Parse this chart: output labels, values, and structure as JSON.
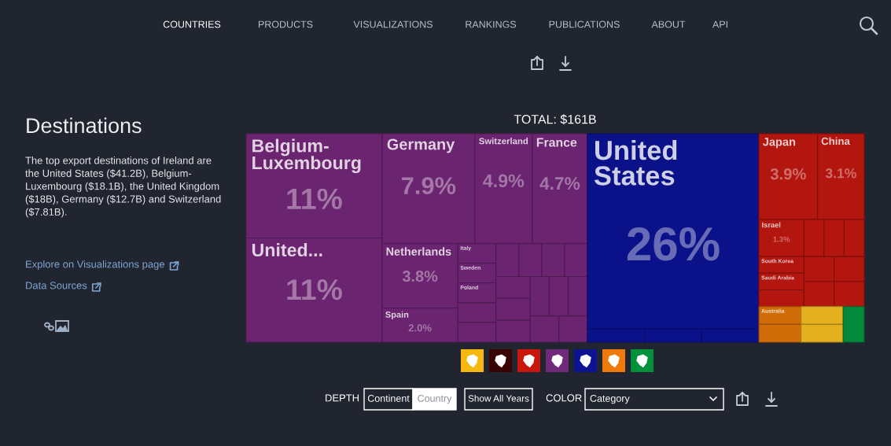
{
  "chart_data": {
    "type": "other",
    "title": "TOTAL: $161B",
    "categories": [
      "Belgium-Luxembourg",
      "United...",
      "Germany",
      "Switzerland",
      "France",
      "Netherlands",
      "Spain",
      "Italy",
      "Sweden",
      "Poland",
      null,
      null,
      null,
      null,
      null,
      null,
      null,
      null,
      null,
      null,
      null,
      null,
      null,
      null,
      "United States",
      null,
      null,
      null,
      "Japan",
      "China",
      "Israel",
      "South Korea",
      "Saudi Arabia",
      null,
      null,
      null,
      null,
      null,
      null,
      null,
      null,
      "Australia",
      null,
      null,
      null,
      null
    ],
    "values": [
      11,
      11,
      7.9,
      4.9,
      4.7,
      3.8,
      2.0,
      null,
      null,
      null,
      null,
      null,
      null,
      null,
      null,
      null,
      null,
      null,
      null,
      null,
      null,
      null,
      null,
      null,
      26,
      null,
      null,
      null,
      3.9,
      3.1,
      1.3,
      null,
      null,
      null,
      null,
      null,
      null,
      null,
      null,
      null,
      null,
      null,
      null,
      null,
      null,
      null
    ],
    "value_labels": [
      "11%",
      "11%",
      "7.9%",
      "4.9%",
      "4.7%",
      "3.8%",
      "2.0%",
      null,
      null,
      null,
      null,
      null,
      null,
      null,
      null,
      null,
      null,
      null,
      null,
      null,
      null,
      null,
      null,
      null,
      "26%",
      null,
      null,
      null,
      "3.9%",
      "3.1%",
      "1.3%",
      null,
      null,
      null,
      null,
      null,
      null,
      null,
      null,
      null,
      null,
      null,
      null,
      null,
      null,
      null
    ],
    "colors": [
      "#6a2470",
      "#6a2470",
      "#6a2470",
      "#6a2470",
      "#6a2470",
      "#6a2470",
      "#6a2470",
      "#6a2470",
      "#6a2470",
      "#6a2470",
      "#6a2470",
      "#6a2470",
      "#6a2470",
      "#6a2470",
      "#6a2470",
      "#6a2470",
      "#6a2470",
      "#6a2470",
      "#6a2470",
      "#6a2470",
      "#6a2470",
      "#6a2470",
      "#6a2470",
      "#6a2470",
      "#0b1289",
      "#0b1289",
      "#0b1289",
      "#0b1289",
      "#b3150f",
      "#b3150f",
      "#b3150f",
      "#b3150f",
      "#b3150f",
      "#b3150f",
      "#b3150f",
      "#b3150f",
      "#b3150f",
      "#b3150f",
      "#b3150f",
      "#b3150f",
      "#b3150f",
      "#d06d09",
      "#d06d09",
      "#e3b020",
      "#e3b020",
      "#02893c"
    ],
    "annotations": [
      "COUNTRIES",
      "PRODUCTS",
      "VISUALIZATIONS",
      "RANKINGS",
      "PUBLICATIONS",
      "ABOUT",
      "API",
      "Destinations",
      "The top export destinations of Ireland are the United States ($41.2B), Belgium-Luxembourg ($18.1B), the United Kingdom ($18B), Germany ($12.7B) and Switzerland ($7.81B).",
      "Explore on Visualizations page",
      "Data Sources",
      "DEPTH",
      "Continent",
      "Country",
      "Show All Years",
      "COLOR",
      "Category"
    ]
  }
}
